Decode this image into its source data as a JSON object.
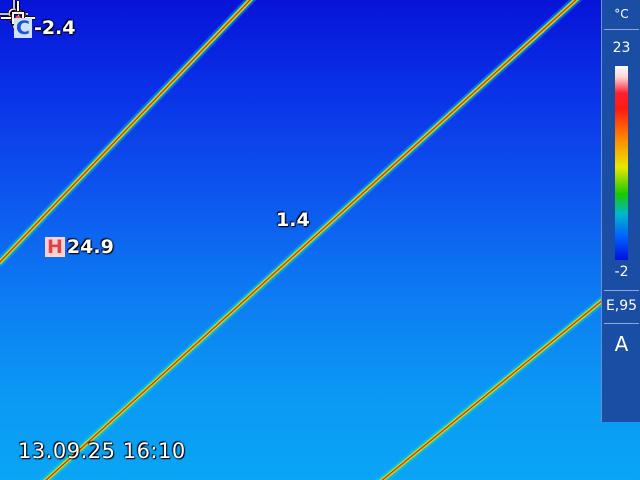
{
  "thermal_image": {
    "date": "13.09.25",
    "time": "16:10",
    "cold_spot": {
      "tag": "C",
      "value": "-2.4"
    },
    "hot_spot": {
      "tag": "H",
      "value": "24.9"
    },
    "center_spot": {
      "value": "1.4"
    }
  },
  "scale": {
    "unit": "°C",
    "max": "23",
    "min": "-2",
    "emissivity": "E,95",
    "mode": "A"
  },
  "colors": {
    "cold_background": "#0713d8",
    "warm_background": "#0aa5f5",
    "hot_line": "#d23a1e",
    "line_halo": "#46e05a",
    "panel": "#1a4ea5"
  }
}
